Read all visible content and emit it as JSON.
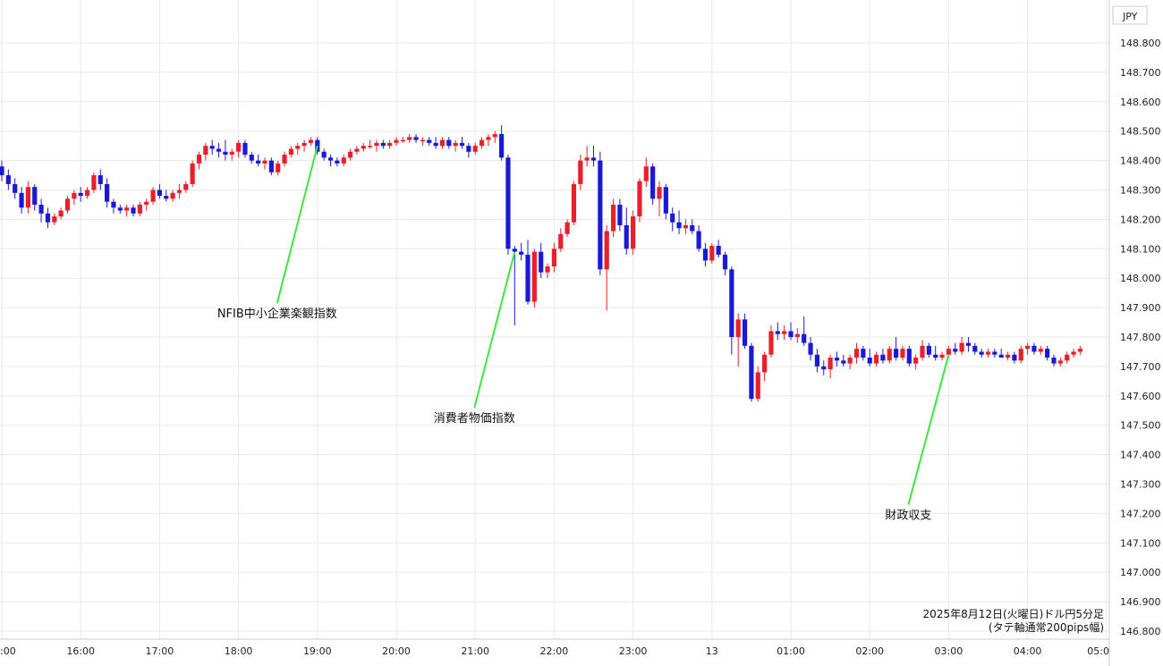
{
  "chart_data": {
    "type": "candlestick",
    "currency_label": "JPY",
    "info_lines": [
      "2025年8月12日(火曜日)ドル円5分足",
      "(タテ軸通常200pips幅)"
    ],
    "ylim": [
      146.8,
      148.85
    ],
    "y_ticks": [
      "148.800",
      "148.700",
      "148.600",
      "148.500",
      "148.400",
      "148.300",
      "148.200",
      "148.100",
      "148.000",
      "147.900",
      "147.800",
      "147.700",
      "147.600",
      "147.500",
      "147.400",
      "147.300",
      "147.200",
      "147.100",
      "147.000",
      "146.900",
      "146.800"
    ],
    "x_ticks": [
      {
        "label": ":00",
        "index": 0
      },
      {
        "label": "16:00",
        "index": 12
      },
      {
        "label": "17:00",
        "index": 24
      },
      {
        "label": "18:00",
        "index": 36
      },
      {
        "label": "19:00",
        "index": 48
      },
      {
        "label": "20:00",
        "index": 60
      },
      {
        "label": "21:00",
        "index": 72
      },
      {
        "label": "22:00",
        "index": 84
      },
      {
        "label": "23:00",
        "index": 96
      },
      {
        "label": "13",
        "index": 108
      },
      {
        "label": "01:00",
        "index": 120
      },
      {
        "label": "02:00",
        "index": 132
      },
      {
        "label": "03:00",
        "index": 144
      },
      {
        "label": "04:00",
        "index": 156
      },
      {
        "label": "05:0",
        "index": 168
      }
    ],
    "colors": {
      "up": "#e8202a",
      "down": "#1a1ad6",
      "annotation": "#3de83d"
    },
    "annotations": [
      {
        "text": "NFIB中小企業楽観指数",
        "index": 48,
        "price": 148.45,
        "label_price": 147.915
      },
      {
        "text": "消費者物価指数",
        "index": 78,
        "price": 148.09,
        "label_price": 147.56
      },
      {
        "text": "財政収支",
        "index": 144,
        "price": 147.74,
        "label_price": 147.23
      }
    ],
    "ohlc": [
      [
        148.38,
        148.4,
        148.33,
        148.35
      ],
      [
        148.35,
        148.37,
        148.3,
        148.32
      ],
      [
        148.32,
        148.34,
        148.27,
        148.29
      ],
      [
        148.29,
        148.31,
        148.22,
        148.24
      ],
      [
        148.24,
        148.33,
        148.22,
        148.31
      ],
      [
        148.31,
        148.32,
        148.23,
        148.25
      ],
      [
        148.25,
        148.27,
        148.19,
        148.22
      ],
      [
        148.22,
        148.24,
        148.17,
        148.19
      ],
      [
        148.19,
        148.22,
        148.18,
        148.21
      ],
      [
        148.21,
        148.24,
        148.2,
        148.23
      ],
      [
        148.23,
        148.28,
        148.22,
        148.27
      ],
      [
        148.27,
        148.3,
        148.25,
        148.29
      ],
      [
        148.29,
        148.31,
        148.26,
        148.28
      ],
      [
        148.28,
        148.31,
        148.27,
        148.3
      ],
      [
        148.3,
        148.36,
        148.29,
        148.35
      ],
      [
        148.35,
        148.37,
        148.3,
        148.32
      ],
      [
        148.32,
        148.34,
        148.24,
        148.26
      ],
      [
        148.26,
        148.27,
        148.22,
        148.24
      ],
      [
        148.24,
        148.25,
        148.22,
        148.23
      ],
      [
        148.23,
        148.25,
        148.21,
        148.24
      ],
      [
        148.24,
        148.25,
        148.21,
        148.22
      ],
      [
        148.22,
        148.26,
        148.21,
        148.25
      ],
      [
        148.25,
        148.27,
        148.23,
        148.26
      ],
      [
        148.26,
        148.31,
        148.25,
        148.3
      ],
      [
        148.3,
        148.32,
        148.27,
        148.28
      ],
      [
        148.28,
        148.3,
        148.26,
        148.27
      ],
      [
        148.27,
        148.3,
        148.26,
        148.29
      ],
      [
        148.29,
        148.32,
        148.27,
        148.3
      ],
      [
        148.3,
        148.33,
        148.29,
        148.32
      ],
      [
        148.32,
        148.4,
        148.31,
        148.39
      ],
      [
        148.39,
        148.43,
        148.37,
        148.42
      ],
      [
        148.42,
        148.46,
        148.4,
        148.45
      ],
      [
        148.45,
        148.47,
        148.42,
        148.44
      ],
      [
        148.44,
        148.46,
        148.41,
        148.43
      ],
      [
        148.43,
        148.47,
        148.4,
        148.42
      ],
      [
        148.42,
        148.44,
        148.4,
        148.43
      ],
      [
        148.43,
        148.47,
        148.41,
        148.46
      ],
      [
        148.46,
        148.47,
        148.41,
        148.42
      ],
      [
        148.42,
        148.43,
        148.39,
        148.4
      ],
      [
        148.4,
        148.42,
        148.38,
        148.39
      ],
      [
        148.39,
        148.41,
        148.37,
        148.4
      ],
      [
        148.4,
        148.41,
        148.35,
        148.36
      ],
      [
        148.36,
        148.4,
        148.35,
        148.39
      ],
      [
        148.39,
        148.43,
        148.38,
        148.42
      ],
      [
        148.42,
        148.45,
        148.41,
        148.44
      ],
      [
        148.44,
        148.46,
        148.42,
        148.45
      ],
      [
        148.45,
        148.47,
        148.43,
        148.46
      ],
      [
        148.46,
        148.48,
        148.45,
        148.47
      ],
      [
        148.47,
        148.48,
        148.42,
        148.43
      ],
      [
        148.43,
        148.44,
        148.4,
        148.41
      ],
      [
        148.41,
        148.42,
        148.38,
        148.4
      ],
      [
        148.4,
        148.41,
        148.38,
        148.39
      ],
      [
        148.39,
        148.42,
        148.38,
        148.41
      ],
      [
        148.41,
        148.44,
        148.4,
        148.43
      ],
      [
        148.43,
        148.45,
        148.42,
        148.44
      ],
      [
        148.44,
        148.46,
        148.43,
        148.45
      ],
      [
        148.45,
        148.47,
        148.44,
        148.45
      ],
      [
        148.45,
        148.47,
        148.43,
        148.46
      ],
      [
        148.46,
        148.47,
        148.44,
        148.45
      ],
      [
        148.45,
        148.47,
        148.44,
        148.46
      ],
      [
        148.46,
        148.48,
        148.45,
        148.47
      ],
      [
        148.47,
        148.48,
        148.46,
        148.47
      ],
      [
        148.47,
        148.49,
        148.46,
        148.48
      ],
      [
        148.48,
        148.49,
        148.46,
        148.47
      ],
      [
        148.47,
        148.48,
        148.45,
        148.47
      ],
      [
        148.47,
        148.48,
        148.45,
        148.46
      ],
      [
        148.46,
        148.48,
        148.44,
        148.45
      ],
      [
        148.45,
        148.48,
        148.44,
        148.47
      ],
      [
        148.47,
        148.48,
        148.44,
        148.45
      ],
      [
        148.45,
        148.47,
        148.43,
        148.46
      ],
      [
        148.46,
        148.48,
        148.44,
        148.45
      ],
      [
        148.45,
        148.46,
        148.41,
        148.43
      ],
      [
        148.43,
        148.46,
        148.42,
        148.45
      ],
      [
        148.45,
        148.48,
        148.44,
        148.47
      ],
      [
        148.47,
        148.49,
        148.45,
        148.48
      ],
      [
        148.48,
        148.5,
        148.46,
        148.49
      ],
      [
        148.49,
        148.52,
        148.4,
        148.41
      ],
      [
        148.41,
        148.42,
        148.08,
        148.1
      ],
      [
        148.1,
        148.11,
        147.84,
        148.09
      ],
      [
        148.09,
        148.12,
        148.06,
        148.08
      ],
      [
        148.08,
        148.13,
        147.91,
        147.92
      ],
      [
        147.92,
        148.1,
        147.9,
        148.09
      ],
      [
        148.09,
        148.12,
        148.0,
        148.02
      ],
      [
        148.02,
        148.05,
        148.0,
        148.04
      ],
      [
        148.04,
        148.12,
        148.02,
        148.1
      ],
      [
        148.1,
        148.17,
        148.09,
        148.15
      ],
      [
        148.15,
        148.2,
        148.14,
        148.19
      ],
      [
        148.19,
        148.33,
        148.18,
        148.32
      ],
      [
        148.32,
        148.42,
        148.3,
        148.4
      ],
      [
        148.4,
        148.45,
        148.38,
        148.41
      ],
      [
        148.41,
        148.45,
        148.38,
        148.4
      ],
      [
        148.4,
        148.43,
        148.01,
        148.03
      ],
      [
        148.03,
        148.18,
        147.89,
        148.16
      ],
      [
        148.16,
        148.27,
        148.14,
        148.25
      ],
      [
        148.25,
        148.27,
        148.16,
        148.18
      ],
      [
        148.18,
        148.24,
        148.08,
        148.1
      ],
      [
        148.1,
        148.23,
        148.08,
        148.21
      ],
      [
        148.21,
        148.34,
        148.19,
        148.33
      ],
      [
        148.33,
        148.41,
        148.31,
        148.38
      ],
      [
        148.38,
        148.39,
        148.25,
        148.27
      ],
      [
        148.27,
        148.33,
        148.21,
        148.31
      ],
      [
        148.31,
        148.32,
        148.2,
        148.22
      ],
      [
        148.22,
        148.24,
        148.16,
        148.19
      ],
      [
        148.19,
        148.23,
        148.15,
        148.17
      ],
      [
        148.17,
        148.2,
        148.15,
        148.18
      ],
      [
        148.18,
        148.2,
        148.15,
        148.16
      ],
      [
        148.16,
        148.18,
        148.09,
        148.1
      ],
      [
        148.1,
        148.12,
        148.04,
        148.06
      ],
      [
        148.06,
        148.12,
        148.05,
        148.11
      ],
      [
        148.11,
        148.13,
        148.07,
        148.08
      ],
      [
        148.08,
        148.09,
        148.01,
        148.03
      ],
      [
        148.03,
        148.04,
        147.74,
        147.8
      ],
      [
        147.8,
        147.88,
        147.7,
        147.86
      ],
      [
        147.86,
        147.88,
        147.76,
        147.77
      ],
      [
        147.77,
        147.78,
        147.58,
        147.59
      ],
      [
        147.59,
        147.7,
        147.58,
        147.68
      ],
      [
        147.68,
        147.75,
        147.65,
        147.74
      ],
      [
        147.74,
        147.84,
        147.73,
        147.82
      ],
      [
        147.82,
        147.85,
        147.79,
        147.81
      ],
      [
        147.81,
        147.84,
        147.79,
        147.82
      ],
      [
        147.82,
        147.85,
        147.79,
        147.8
      ],
      [
        147.8,
        147.83,
        147.78,
        147.81
      ],
      [
        147.81,
        147.87,
        147.77,
        147.78
      ],
      [
        147.78,
        147.8,
        147.72,
        147.74
      ],
      [
        147.74,
        147.76,
        147.68,
        147.7
      ],
      [
        147.7,
        147.72,
        147.67,
        147.69
      ],
      [
        147.69,
        147.74,
        147.66,
        147.73
      ],
      [
        147.73,
        147.75,
        147.7,
        147.72
      ],
      [
        147.72,
        147.74,
        147.7,
        147.71
      ],
      [
        147.71,
        147.74,
        147.69,
        147.73
      ],
      [
        147.73,
        147.78,
        147.71,
        147.76
      ],
      [
        147.76,
        147.77,
        147.72,
        147.73
      ],
      [
        147.73,
        147.76,
        147.7,
        147.71
      ],
      [
        147.71,
        147.75,
        147.7,
        147.74
      ],
      [
        147.74,
        147.76,
        147.71,
        147.72
      ],
      [
        147.72,
        147.77,
        147.71,
        147.76
      ],
      [
        147.76,
        147.8,
        147.72,
        147.73
      ],
      [
        147.73,
        147.77,
        147.72,
        147.76
      ],
      [
        147.76,
        147.77,
        147.7,
        147.71
      ],
      [
        147.71,
        147.74,
        147.69,
        147.73
      ],
      [
        147.73,
        147.79,
        147.72,
        147.77
      ],
      [
        147.77,
        147.78,
        147.73,
        147.74
      ],
      [
        147.74,
        147.77,
        147.72,
        147.73
      ],
      [
        147.73,
        147.75,
        147.72,
        147.74
      ],
      [
        147.74,
        147.77,
        147.73,
        147.76
      ],
      [
        147.76,
        147.78,
        147.74,
        147.75
      ],
      [
        147.75,
        147.8,
        147.74,
        147.78
      ],
      [
        147.78,
        147.8,
        147.75,
        147.77
      ],
      [
        147.77,
        147.78,
        147.74,
        147.75
      ],
      [
        147.75,
        147.76,
        147.73,
        147.74
      ],
      [
        147.74,
        147.76,
        147.73,
        147.75
      ],
      [
        147.75,
        147.76,
        147.73,
        147.74
      ],
      [
        147.74,
        147.76,
        147.73,
        147.73
      ],
      [
        147.73,
        147.75,
        147.72,
        147.74
      ],
      [
        147.74,
        147.75,
        147.71,
        147.72
      ],
      [
        147.72,
        147.77,
        147.71,
        147.76
      ],
      [
        147.76,
        147.78,
        147.74,
        147.77
      ],
      [
        147.77,
        147.78,
        147.74,
        147.75
      ],
      [
        147.75,
        147.77,
        147.74,
        147.76
      ],
      [
        147.76,
        147.77,
        147.72,
        147.73
      ],
      [
        147.73,
        147.74,
        147.7,
        147.71
      ],
      [
        147.71,
        147.73,
        147.7,
        147.72
      ],
      [
        147.72,
        147.75,
        147.71,
        147.74
      ],
      [
        147.74,
        147.76,
        147.73,
        147.75
      ],
      [
        147.75,
        147.77,
        147.74,
        147.76
      ]
    ]
  }
}
